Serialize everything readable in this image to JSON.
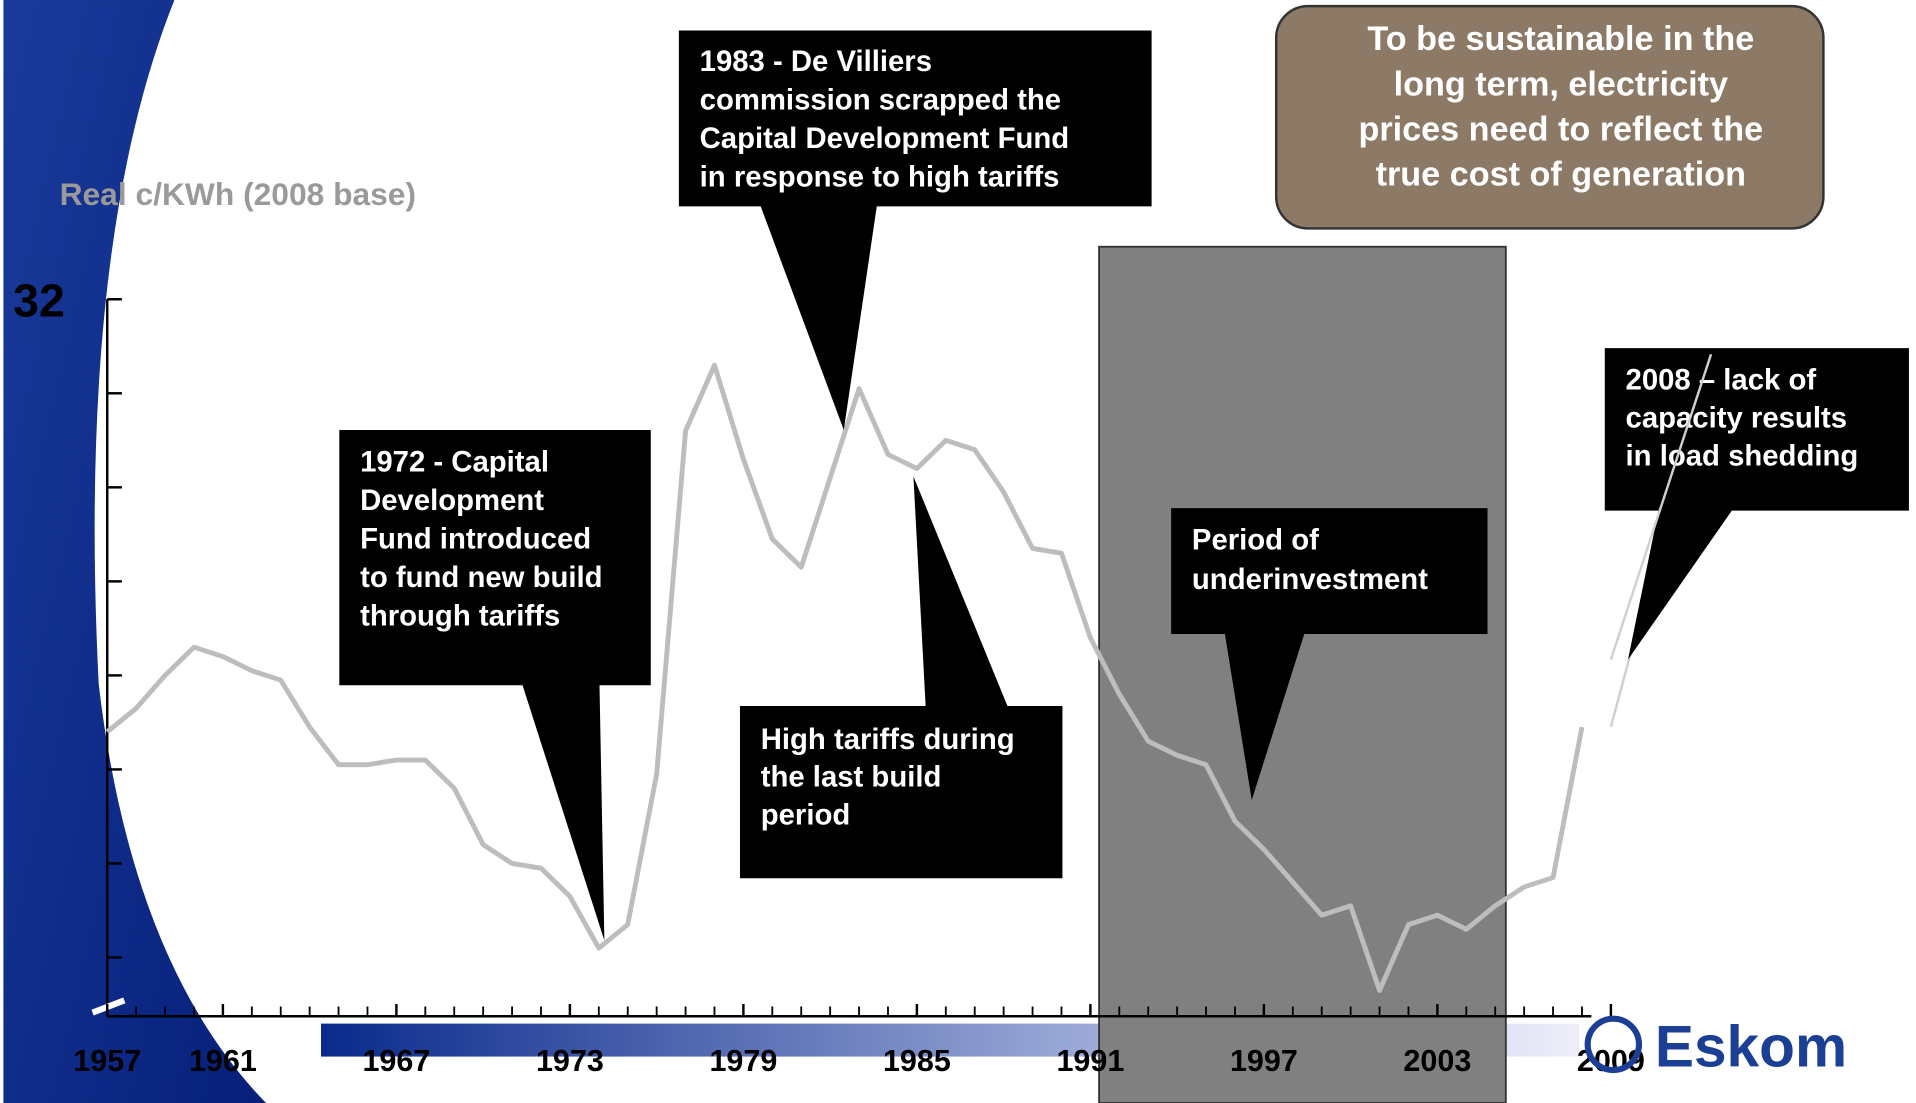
{
  "chart_data": {
    "type": "line",
    "y_label": "Real c/KWh (2008 base)",
    "x": [
      1957,
      1958,
      1959,
      1960,
      1961,
      1962,
      1963,
      1964,
      1965,
      1966,
      1967,
      1968,
      1969,
      1970,
      1971,
      1972,
      1973,
      1974,
      1975,
      1976,
      1977,
      1978,
      1979,
      1980,
      1981,
      1982,
      1983,
      1984,
      1985,
      1986,
      1987,
      1988,
      1989,
      1990,
      1991,
      1992,
      1993,
      1994,
      1995,
      1996,
      1997,
      1998,
      1999,
      2000,
      2001,
      2002,
      2003,
      2004,
      2005,
      2006,
      2007,
      2008
    ],
    "series": [
      {
        "color": "#bdbdbd",
        "values": [
          22.8,
          23.3,
          24.0,
          24.6,
          24.4,
          24.1,
          23.9,
          22.9,
          22.1,
          22.1,
          22.2,
          22.2,
          21.6,
          20.4,
          20.0,
          19.9,
          19.3,
          18.2,
          18.7,
          21.9,
          29.2,
          30.6,
          28.6,
          26.9,
          26.3,
          28.2,
          30.1,
          28.7,
          28.4,
          29.0,
          28.8,
          27.9,
          26.7,
          26.6,
          24.8,
          23.6,
          22.6,
          22.3,
          22.1,
          20.9,
          20.3,
          19.6,
          18.9,
          19.1,
          17.3,
          18.7,
          18.9,
          18.6,
          19.1,
          19.5,
          19.7,
          22.9
        ]
      }
    ],
    "xlim": [
      1957,
      2009
    ],
    "xticks": [
      1957,
      1961,
      1967,
      1973,
      1979,
      1985,
      1991,
      1997,
      2003,
      2009
    ],
    "ylim": [
      16.75,
      32
    ],
    "yticks": [
      32
    ],
    "yminor": [
      30,
      28,
      26,
      24,
      22,
      20,
      18
    ],
    "annotations": [
      {
        "lines": [
          "1983 - De Villiers",
          "commission scrapped the",
          "Capital Development Fund",
          "in response to high tariffs"
        ]
      },
      {
        "lines": [
          "1972 - Capital",
          "Development",
          "Fund introduced",
          "to fund new build",
          "through tariffs"
        ]
      },
      {
        "lines": [
          "High tariffs during",
          "the last build",
          "period"
        ]
      },
      {
        "lines": [
          "Period of",
          "underinvestment"
        ]
      },
      {
        "lines": [
          "2008 – lack of",
          "capacity results",
          "in load shedding"
        ]
      }
    ],
    "headline": {
      "lines": [
        "To be sustainable in the",
        "long term, electricity",
        "prices need to reflect the",
        "true cost of generation"
      ]
    },
    "logo": "Eskom"
  }
}
